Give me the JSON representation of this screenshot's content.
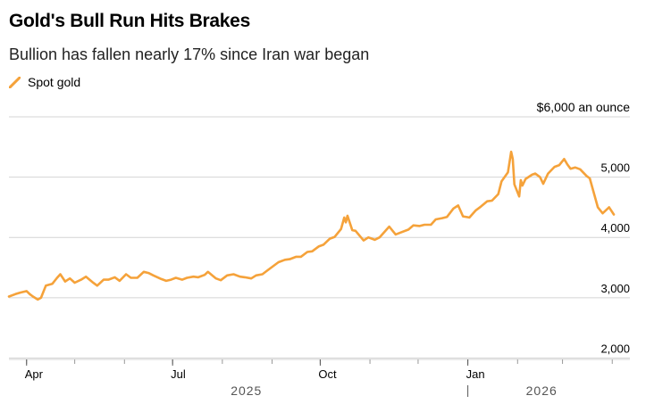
{
  "header": {
    "title": "Gold's Bull Run Hits Brakes",
    "subtitle": "Bullion has fallen nearly 17% since Iran war began"
  },
  "chart_data": {
    "type": "line",
    "title": "Gold's Bull Run Hits Brakes",
    "subtitle": "Bullion has fallen nearly 17% since Iran war began",
    "xlabel": "",
    "ylabel": "$ an ounce",
    "y_unit_label": "$6,000 an ounce",
    "ylim": [
      1800,
      6000
    ],
    "y_ticks": [
      {
        "value": 6000,
        "label": "$6,000 an ounce"
      },
      {
        "value": 5000,
        "label": "5,000"
      },
      {
        "value": 4000,
        "label": "4,000"
      },
      {
        "value": 3000,
        "label": "3,000"
      },
      {
        "value": 2000,
        "label": "2,000"
      }
    ],
    "x_range": [
      "2025-03-21",
      "2026-04-12"
    ],
    "x_ticks": [
      {
        "date": "2025-04-01",
        "label": "Apr"
      },
      {
        "date": "2025-07-01",
        "label": "Jul"
      },
      {
        "date": "2025-10-01",
        "label": "Oct"
      },
      {
        "date": "2026-01-01",
        "label": "Jan"
      }
    ],
    "years": [
      {
        "label": "2025",
        "center": "2025-08-16"
      },
      {
        "label": "2026",
        "center": "2026-02-16"
      }
    ],
    "year_divider": "2026-01-01",
    "grid": true,
    "legend": "top-left",
    "color": "#f5a23a",
    "series": [
      {
        "name": "Spot gold",
        "points": [
          [
            "2025-03-21",
            3020
          ],
          [
            "2025-03-25",
            3060
          ],
          [
            "2025-03-28",
            3085
          ],
          [
            "2025-04-01",
            3110
          ],
          [
            "2025-04-03",
            3060
          ],
          [
            "2025-04-05",
            3020
          ],
          [
            "2025-04-08",
            2970
          ],
          [
            "2025-04-10",
            3000
          ],
          [
            "2025-04-13",
            3200
          ],
          [
            "2025-04-17",
            3230
          ],
          [
            "2025-04-20",
            3330
          ],
          [
            "2025-04-22",
            3390
          ],
          [
            "2025-04-25",
            3270
          ],
          [
            "2025-04-28",
            3320
          ],
          [
            "2025-05-01",
            3250
          ],
          [
            "2025-05-05",
            3300
          ],
          [
            "2025-05-08",
            3350
          ],
          [
            "2025-05-12",
            3260
          ],
          [
            "2025-05-15",
            3200
          ],
          [
            "2025-05-19",
            3300
          ],
          [
            "2025-05-22",
            3300
          ],
          [
            "2025-05-26",
            3340
          ],
          [
            "2025-05-29",
            3280
          ],
          [
            "2025-06-02",
            3390
          ],
          [
            "2025-06-05",
            3330
          ],
          [
            "2025-06-09",
            3330
          ],
          [
            "2025-06-13",
            3430
          ],
          [
            "2025-06-16",
            3410
          ],
          [
            "2025-06-19",
            3370
          ],
          [
            "2025-06-24",
            3310
          ],
          [
            "2025-06-27",
            3280
          ],
          [
            "2025-06-30",
            3300
          ],
          [
            "2025-07-03",
            3330
          ],
          [
            "2025-07-07",
            3300
          ],
          [
            "2025-07-10",
            3330
          ],
          [
            "2025-07-14",
            3350
          ],
          [
            "2025-07-17",
            3340
          ],
          [
            "2025-07-21",
            3380
          ],
          [
            "2025-07-23",
            3430
          ],
          [
            "2025-07-28",
            3320
          ],
          [
            "2025-07-31",
            3290
          ],
          [
            "2025-08-04",
            3370
          ],
          [
            "2025-08-08",
            3390
          ],
          [
            "2025-08-12",
            3350
          ],
          [
            "2025-08-15",
            3340
          ],
          [
            "2025-08-19",
            3320
          ],
          [
            "2025-08-22",
            3370
          ],
          [
            "2025-08-26",
            3390
          ],
          [
            "2025-08-29",
            3450
          ],
          [
            "2025-09-02",
            3530
          ],
          [
            "2025-09-05",
            3590
          ],
          [
            "2025-09-09",
            3630
          ],
          [
            "2025-09-12",
            3640
          ],
          [
            "2025-09-16",
            3680
          ],
          [
            "2025-09-19",
            3680
          ],
          [
            "2025-09-23",
            3760
          ],
          [
            "2025-09-26",
            3770
          ],
          [
            "2025-09-30",
            3850
          ],
          [
            "2025-10-03",
            3880
          ],
          [
            "2025-10-07",
            3980
          ],
          [
            "2025-10-10",
            4010
          ],
          [
            "2025-10-14",
            4140
          ],
          [
            "2025-10-16",
            4330
          ],
          [
            "2025-10-17",
            4250
          ],
          [
            "2025-10-18",
            4360
          ],
          [
            "2025-10-21",
            4120
          ],
          [
            "2025-10-23",
            4110
          ],
          [
            "2025-10-28",
            3950
          ],
          [
            "2025-10-31",
            4000
          ],
          [
            "2025-11-04",
            3960
          ],
          [
            "2025-11-07",
            4000
          ],
          [
            "2025-11-11",
            4120
          ],
          [
            "2025-11-13",
            4180
          ],
          [
            "2025-11-17",
            4050
          ],
          [
            "2025-11-20",
            4080
          ],
          [
            "2025-11-25",
            4130
          ],
          [
            "2025-11-28",
            4200
          ],
          [
            "2025-12-02",
            4190
          ],
          [
            "2025-12-05",
            4210
          ],
          [
            "2025-12-09",
            4210
          ],
          [
            "2025-12-12",
            4300
          ],
          [
            "2025-12-16",
            4320
          ],
          [
            "2025-12-19",
            4340
          ],
          [
            "2025-12-23",
            4480
          ],
          [
            "2025-12-26",
            4530
          ],
          [
            "2025-12-29",
            4350
          ],
          [
            "2026-01-02",
            4330
          ],
          [
            "2026-01-06",
            4450
          ],
          [
            "2026-01-09",
            4510
          ],
          [
            "2026-01-13",
            4600
          ],
          [
            "2026-01-16",
            4610
          ],
          [
            "2026-01-20",
            4720
          ],
          [
            "2026-01-22",
            4930
          ],
          [
            "2026-01-26",
            5080
          ],
          [
            "2026-01-28",
            5420
          ],
          [
            "2026-01-29",
            5300
          ],
          [
            "2026-01-30",
            4880
          ],
          [
            "2026-02-02",
            4680
          ],
          [
            "2026-02-03",
            4950
          ],
          [
            "2026-02-04",
            4860
          ],
          [
            "2026-02-06",
            4970
          ],
          [
            "2026-02-10",
            5040
          ],
          [
            "2026-02-12",
            5060
          ],
          [
            "2026-02-15",
            5000
          ],
          [
            "2026-02-17",
            4890
          ],
          [
            "2026-02-20",
            5060
          ],
          [
            "2026-02-24",
            5170
          ],
          [
            "2026-02-27",
            5200
          ],
          [
            "2026-03-02",
            5300
          ],
          [
            "2026-03-04",
            5210
          ],
          [
            "2026-03-06",
            5140
          ],
          [
            "2026-03-09",
            5160
          ],
          [
            "2026-03-12",
            5130
          ],
          [
            "2026-03-16",
            5020
          ],
          [
            "2026-03-18",
            4980
          ],
          [
            "2026-03-23",
            4500
          ],
          [
            "2026-03-26",
            4400
          ],
          [
            "2026-03-30",
            4500
          ],
          [
            "2026-04-02",
            4380
          ]
        ]
      }
    ]
  }
}
